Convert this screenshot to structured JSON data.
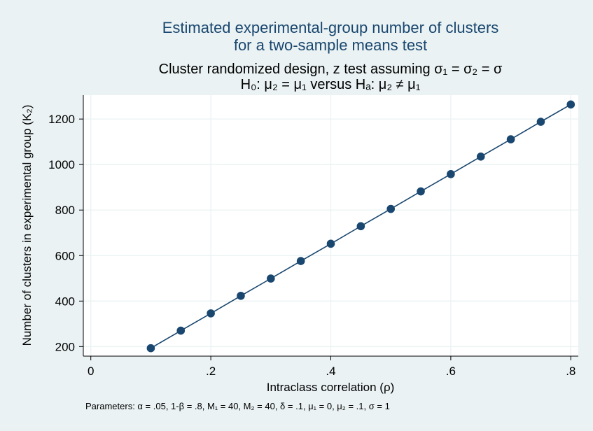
{
  "chart_data": {
    "type": "line",
    "title_lines": [
      "Estimated experimental-group number of clusters",
      "for a two-sample means test"
    ],
    "subtitle_lines": [
      "Cluster randomized design, z test assuming σ₁ = σ₂ = σ",
      "H₀: μ₂ = μ₁  versus  Hₐ: μ₂ ≠ μ₁"
    ],
    "xlabel": "Intraclass correlation (ρ)",
    "ylabel": "Number of clusters in experimental group (K₂)",
    "note": "Parameters: α = .05, 1-β = .8, M₁ = 40, M₂ = 40, δ = .1, μ₁ = 0, μ₂ = .1, σ = 1",
    "xlim": [
      -0.0125,
      0.8125
    ],
    "ylim": [
      158,
      1305
    ],
    "xticks": [
      0,
      0.2,
      0.4,
      0.6,
      0.8
    ],
    "xtick_labels": [
      "0",
      ".2",
      ".4",
      ".6",
      ".8"
    ],
    "yticks": [
      200,
      400,
      600,
      800,
      1000,
      1200
    ],
    "ytick_labels": [
      "200",
      "400",
      "600",
      "800",
      "1000",
      "1200"
    ],
    "grid": true,
    "series": [
      {
        "color": "#1a476f",
        "x": [
          0.1,
          0.15,
          0.2,
          0.25,
          0.3,
          0.35,
          0.4,
          0.45,
          0.5,
          0.55,
          0.6,
          0.65,
          0.7,
          0.75,
          0.8
        ],
        "y": [
          193,
          270,
          346,
          423,
          499,
          576,
          652,
          729,
          805,
          882,
          958,
          1035,
          1111,
          1188,
          1264
        ]
      }
    ]
  },
  "colors": {
    "background": "#eaf2f3",
    "plot_background": "#ffffff",
    "grid": "#eaf2f3",
    "series": "#1a476f"
  }
}
